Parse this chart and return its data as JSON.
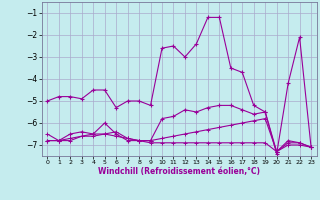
{
  "xlabel": "Windchill (Refroidissement éolien,°C)",
  "background_color": "#c5ecee",
  "grid_color": "#aaaacc",
  "line_color": "#990099",
  "x": [
    0,
    1,
    2,
    3,
    4,
    5,
    6,
    7,
    8,
    9,
    10,
    11,
    12,
    13,
    14,
    15,
    16,
    17,
    18,
    19,
    20,
    21,
    22,
    23
  ],
  "line1": [
    -5.0,
    -4.8,
    -4.8,
    -4.9,
    -4.5,
    -4.5,
    -5.3,
    -5.0,
    -5.0,
    -5.2,
    -2.6,
    -2.5,
    -3.0,
    -2.4,
    -1.2,
    -1.2,
    -3.5,
    -3.7,
    -5.2,
    -5.5,
    -7.4,
    -4.2,
    -2.1,
    -7.1
  ],
  "line2": [
    -6.8,
    -6.8,
    -6.5,
    -6.4,
    -6.5,
    -6.0,
    -6.5,
    -6.8,
    -6.8,
    -6.8,
    -5.8,
    -5.7,
    -5.4,
    -5.5,
    -5.3,
    -5.2,
    -5.2,
    -5.4,
    -5.6,
    -5.5,
    -7.3,
    -6.8,
    -6.9,
    -7.1
  ],
  "line3": [
    -6.8,
    -6.8,
    -6.7,
    -6.6,
    -6.6,
    -6.5,
    -6.6,
    -6.7,
    -6.8,
    -6.9,
    -6.9,
    -6.9,
    -6.9,
    -6.9,
    -6.9,
    -6.9,
    -6.9,
    -6.9,
    -6.9,
    -6.9,
    -7.3,
    -7.0,
    -7.0,
    -7.1
  ],
  "line4": [
    -6.5,
    -6.8,
    -6.8,
    -6.6,
    -6.5,
    -6.5,
    -6.4,
    -6.7,
    -6.8,
    -6.8,
    -6.7,
    -6.6,
    -6.5,
    -6.4,
    -6.3,
    -6.2,
    -6.1,
    -6.0,
    -5.9,
    -5.8,
    -7.3,
    -6.9,
    -6.9,
    -7.1
  ],
  "ylim": [
    -7.5,
    -0.5
  ],
  "yticks": [
    -7,
    -6,
    -5,
    -4,
    -3,
    -2,
    -1
  ],
  "xlim": [
    -0.5,
    23.5
  ]
}
